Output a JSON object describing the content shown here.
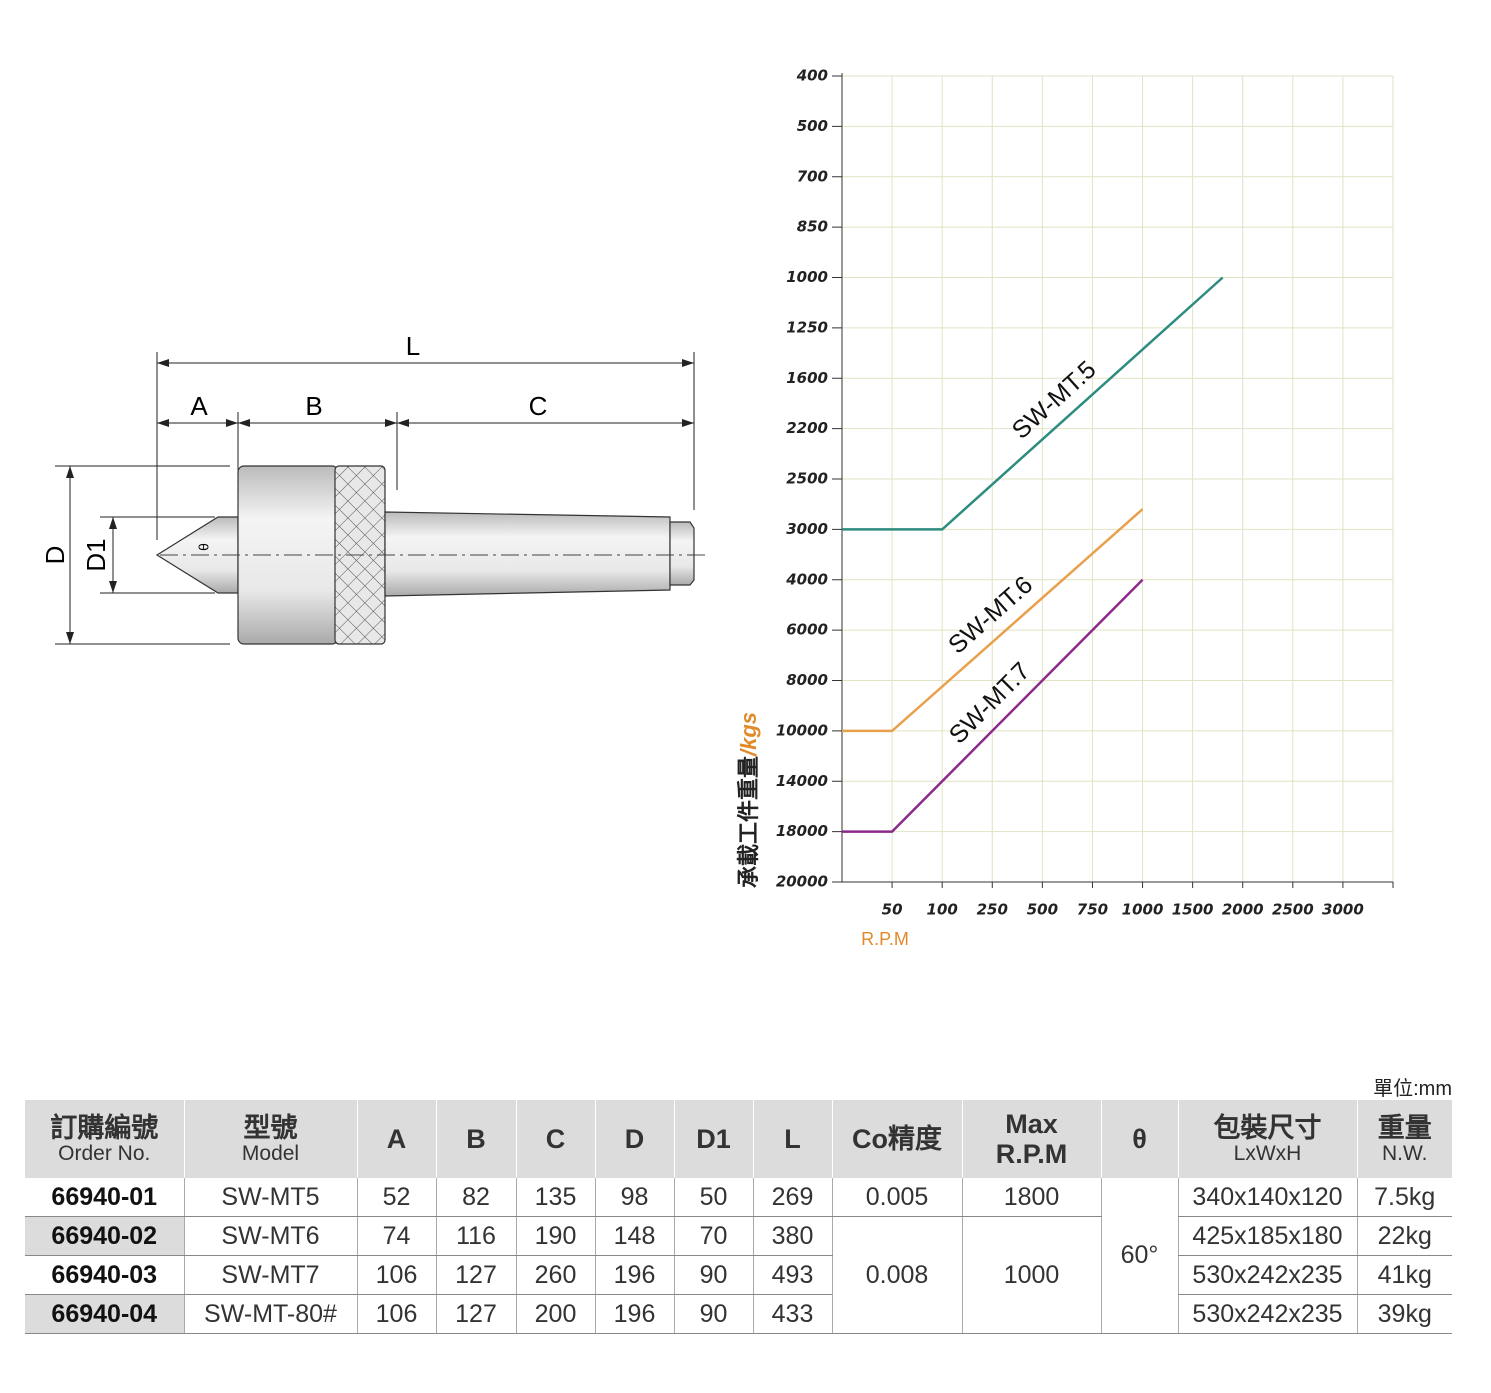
{
  "drawing": {
    "labels": {
      "L": "L",
      "A": "A",
      "B": "B",
      "C": "C",
      "D": "D",
      "D1": "D1",
      "theta": "θ"
    }
  },
  "chart_data": {
    "type": "line",
    "ylabel": "承載工件重量",
    "ylabel_unit": "/kgs",
    "xlabel": "R.P.M",
    "xlim": [
      0,
      3500
    ],
    "xticks": [
      50,
      100,
      250,
      500,
      750,
      1000,
      1500,
      2000,
      2500,
      3000
    ],
    "ylim": [
      400,
      20000
    ],
    "yticks": [
      400,
      500,
      700,
      850,
      1000,
      1250,
      1600,
      2200,
      2500,
      3000,
      4000,
      6000,
      8000,
      10000,
      14000,
      18000,
      20000
    ],
    "grid": true,
    "series": [
      {
        "name": "SW-MT.5",
        "color": "#2e8b80",
        "x": [
          0,
          100,
          1800
        ],
        "values": [
          3000,
          3000,
          1000
        ]
      },
      {
        "name": "SW-MT.6",
        "color": "#e8a04c",
        "x": [
          0,
          50,
          1000
        ],
        "values": [
          10000,
          10000,
          2800
        ]
      },
      {
        "name": "SW-MT.7",
        "color": "#8b2a8b",
        "x": [
          0,
          50,
          1000
        ],
        "values": [
          18000,
          18000,
          4000
        ]
      }
    ]
  },
  "table": {
    "unit": "單位:mm",
    "columns": [
      {
        "title": "訂購編號",
        "subtitle": "Order No."
      },
      {
        "title": "型號",
        "subtitle": "Model"
      },
      {
        "title": "A"
      },
      {
        "title": "B"
      },
      {
        "title": "C"
      },
      {
        "title": "D"
      },
      {
        "title": "D1"
      },
      {
        "title": "L"
      },
      {
        "title": "Co精度"
      },
      {
        "title": "Max",
        "subtitle": "R.P.M",
        "subtitle_bold": true
      },
      {
        "title": "θ"
      },
      {
        "title": "包裝尺寸",
        "subtitle": "LxWxH"
      },
      {
        "title": "重量",
        "subtitle": "N.W."
      }
    ],
    "rows": [
      [
        "66940-01",
        "SW-MT5",
        "52",
        "82",
        "135",
        "98",
        "50",
        "269",
        "0.005",
        "1800",
        "60°",
        "340x140x120",
        "7.5kg"
      ],
      [
        "66940-02",
        "SW-MT6",
        "74",
        "116",
        "190",
        "148",
        "70",
        "380",
        "0.008",
        "1000",
        null,
        "425x185x180",
        "22kg"
      ],
      [
        "66940-03",
        "SW-MT7",
        "106",
        "127",
        "260",
        "196",
        "90",
        "493",
        null,
        null,
        null,
        "530x242x235",
        "41kg"
      ],
      [
        "66940-04",
        "SW-MT-80#",
        "106",
        "127",
        "200",
        "196",
        "90",
        "433",
        null,
        null,
        null,
        "530x242x235",
        "39kg"
      ]
    ]
  }
}
